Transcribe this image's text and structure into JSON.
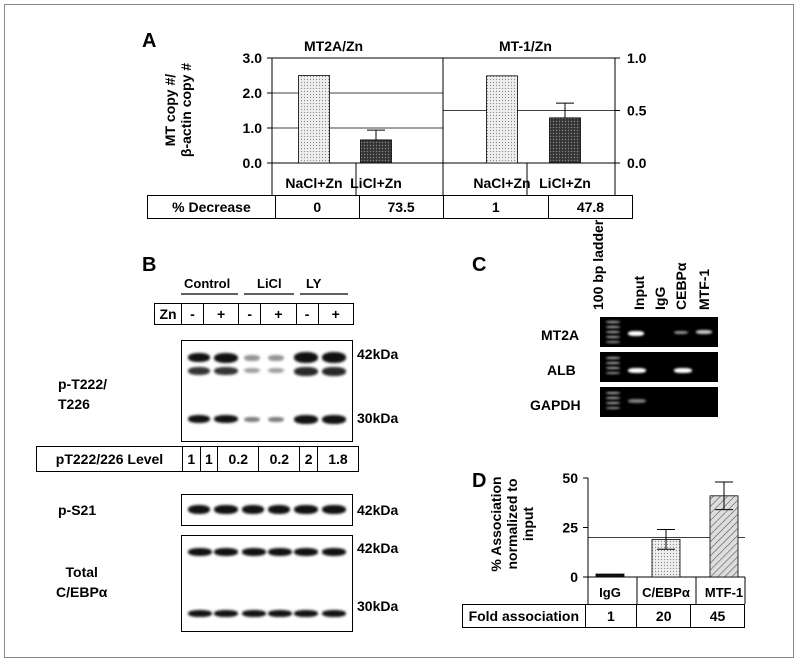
{
  "panels": {
    "A": "A",
    "B": "B",
    "C": "C",
    "D": "D"
  },
  "panelA": {
    "title_left": "MT2A/Zn",
    "title_right": "MT-1/Zn",
    "ylabel_line1": "MT copy #/",
    "ylabel_line2": "β-actin copy #",
    "row_label": "% Decrease",
    "categories": [
      "NaCl+Zn",
      "LiCl+Zn",
      "NaCl+Zn",
      "LiCl+Zn"
    ],
    "decrease": [
      "0",
      "73.5",
      "1",
      "47.8"
    ],
    "left_ticks": [
      "0.0",
      "1.0",
      "2.0",
      "3.0"
    ],
    "right_ticks": [
      "0.0",
      "0.5",
      "1.0"
    ]
  },
  "panelB": {
    "group_labels": [
      "Control",
      "LiCl",
      "LY"
    ],
    "zn_label": "Zn",
    "zn_signs": [
      "-",
      "+",
      "-",
      "+",
      "-",
      "+"
    ],
    "blot1_label_line1": "p-T222/",
    "blot1_label_line2": "T226",
    "kda_42": "42kDa",
    "kda_30": "30kDa",
    "level_label": "pT222/226 Level",
    "levels": [
      "1",
      "1",
      "0.2",
      "0.2",
      "2",
      "1.8"
    ],
    "blot2_label": "p-S21",
    "blot3_label_line1": "Total",
    "blot3_label_line2": "C/EBPα"
  },
  "panelC": {
    "lane_labels": [
      "100 bp ladder",
      "Input",
      "IgG",
      "CEBPα",
      "MTF-1"
    ],
    "row_labels": [
      "MT2A",
      "ALB",
      "GAPDH"
    ]
  },
  "panelD": {
    "ylabel_line1": "% Association",
    "ylabel_line2": "normalized to",
    "ylabel_line3": "input",
    "ticks": [
      "0",
      "25",
      "50"
    ],
    "row_label": "Fold association",
    "categories": [
      "IgG",
      "C/EBPα",
      "MTF-1"
    ],
    "fold": [
      "1",
      "20",
      "45"
    ]
  },
  "chart_data": [
    {
      "type": "bar",
      "title": "MT2A/Zn",
      "categories": [
        "NaCl+Zn",
        "LiCl+Zn"
      ],
      "values": [
        2.5,
        0.66
      ],
      "error": [
        0,
        0.28
      ],
      "ylabel": "MT copy #/ β-actin copy #",
      "ylim": [
        0,
        3.0
      ],
      "yticks": [
        0,
        1,
        2,
        3
      ],
      "colors": [
        "#d9d9d9",
        "#4d4d4d"
      ]
    },
    {
      "type": "bar",
      "title": "MT-1/Zn",
      "categories": [
        "NaCl+Zn",
        "LiCl+Zn"
      ],
      "values": [
        0.83,
        0.43
      ],
      "error": [
        0,
        0.14
      ],
      "ylim": [
        0,
        1.0
      ],
      "yticks": [
        0,
        0.5,
        1.0
      ],
      "colors": [
        "#d9d9d9",
        "#4d4d4d"
      ]
    },
    {
      "type": "bar",
      "categories": [
        "IgG",
        "C/EBPα",
        "MTF-1"
      ],
      "values": [
        1.5,
        19,
        41
      ],
      "error": [
        0,
        5,
        7
      ],
      "ylabel": "% Association normalized to input",
      "ylim": [
        0,
        50
      ],
      "yticks": [
        0,
        25,
        50
      ],
      "colors": [
        "#111111",
        "#e0e0e0",
        "#bfbfbf"
      ]
    }
  ]
}
